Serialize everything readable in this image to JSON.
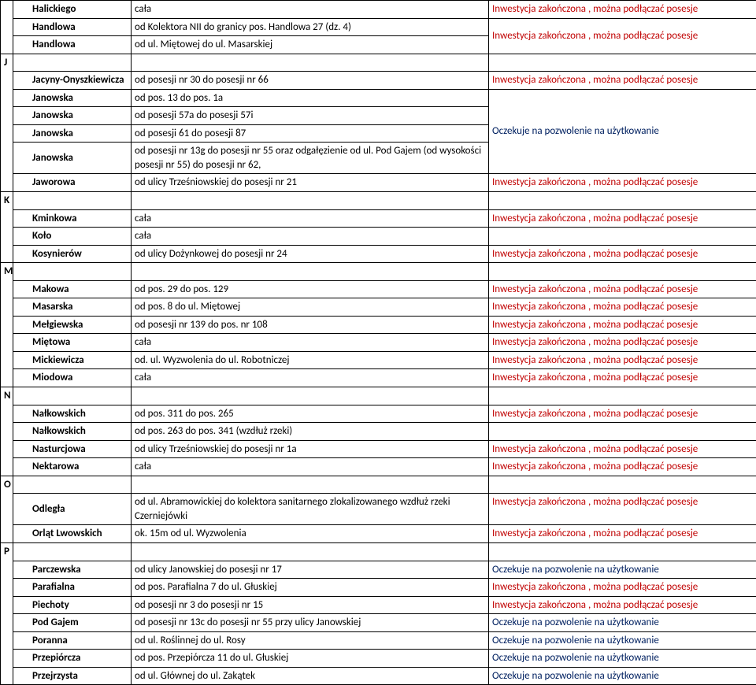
{
  "colors": {
    "red": "#c00000",
    "blue": "#002060",
    "black": "#000000",
    "border": "#000000",
    "background": "#ffffff"
  },
  "status": {
    "done": "Inwestycja zakończona , można podłączać posesje",
    "wait": "Oczekuje na pozwolenie na użytkowanie"
  },
  "sections": [
    {
      "letter": null,
      "rows": [
        {
          "street": "Halickiego",
          "show_street": true,
          "street_bold": true,
          "street_indent": true,
          "desc": "cała",
          "status_key": "done",
          "status_span": 1,
          "status_valign": "top"
        },
        {
          "street": "Handlowa",
          "show_street": true,
          "street_bold": true,
          "street_indent": true,
          "desc": "od Kolektora NII do granicy pos. Handlowa 27 (dz. 4)",
          "status_key": "done",
          "status_span": 2,
          "status_valign": "middle"
        },
        {
          "street": "Handlowa",
          "show_street": true,
          "street_bold": true,
          "street_indent": true,
          "desc": "od ul. Miętowej do ul. Masarskiej",
          "status_key": null
        }
      ]
    },
    {
      "letter": "J",
      "rows": [
        {
          "street": "Jacyny-Onyszkiewicza",
          "show_street": true,
          "street_bold": true,
          "street_indent": true,
          "desc": "od posesji nr 30 do posesji nr 66",
          "status_key": "done",
          "status_span": 1
        },
        {
          "street": "Janowska",
          "show_street": true,
          "street_bold": true,
          "street_indent": true,
          "desc": "od pos.  13 do pos. 1a",
          "status_key": "wait",
          "status_span": 4,
          "status_valign": "middle"
        },
        {
          "street": "Janowska",
          "show_street": true,
          "street_bold": true,
          "street_indent": true,
          "desc": "od posesji 57a do posesji 57i",
          "status_key": null
        },
        {
          "street": "Janowska",
          "show_street": true,
          "street_bold": true,
          "street_indent": true,
          "desc": "od posesji 61 do posesji 87",
          "status_key": null
        },
        {
          "street": "Janowska",
          "show_street": true,
          "street_bold": true,
          "street_indent": true,
          "desc": "od posesji nr 13g do posesji nr 55 oraz odgałęzienie od ul. Pod Gajem (od wysokości posesji nr 55) do posesji nr 62,",
          "status_key": null
        },
        {
          "street": "Jaworowa",
          "show_street": true,
          "street_bold": true,
          "street_indent": true,
          "desc": "od ulicy Trześniowskiej do posesji nr 21",
          "status_key": "done",
          "status_span": 1
        }
      ]
    },
    {
      "letter": "K",
      "rows": [
        {
          "street": "Kminkowa",
          "show_street": true,
          "street_bold": true,
          "street_indent": true,
          "desc": "cała",
          "status_key": "done",
          "status_span": 1
        },
        {
          "street": "Koło",
          "show_street": true,
          "street_bold": true,
          "street_indent": true,
          "desc": "cała",
          "status_key": "",
          "status_span": 1,
          "status_literal": ""
        },
        {
          "street": "Kosynierów",
          "show_street": true,
          "street_bold": true,
          "street_indent": true,
          "desc": "od ulicy Dożynkowej do posesji nr 24",
          "status_key": "done",
          "status_span": 1
        }
      ]
    },
    {
      "letter": "M",
      "rows": [
        {
          "street": "Makowa",
          "show_street": true,
          "street_bold": true,
          "street_indent": true,
          "desc": "od pos.  29 do pos.  129",
          "status_key": "done",
          "status_span": 1
        },
        {
          "street": "Masarska",
          "show_street": true,
          "street_bold": true,
          "street_indent": true,
          "desc": "od pos. 8 do ul. Miętowej",
          "status_key": "done",
          "status_span": 1
        },
        {
          "street": "Mełgiewska",
          "show_street": true,
          "street_bold": true,
          "street_indent": true,
          "desc": "od  posesji nr 139 do pos. nr 108",
          "status_key": "done",
          "status_span": 1
        },
        {
          "street": "Miętowa",
          "show_street": true,
          "street_bold": true,
          "street_indent": true,
          "desc": "cała",
          "status_key": "done",
          "status_span": 1
        },
        {
          "street": "Mickiewicza",
          "show_street": true,
          "street_bold": true,
          "street_indent": true,
          "desc": "od. ul. Wyzwolenia do ul. Robotniczej",
          "status_key": "done",
          "status_span": 1
        },
        {
          "street": "Miodowa",
          "show_street": true,
          "street_bold": true,
          "street_indent": true,
          "desc": "cała",
          "status_key": "done",
          "status_span": 1
        }
      ]
    },
    {
      "letter": "N",
      "rows": [
        {
          "street": "Nałkowskich",
          "show_street": true,
          "street_bold": true,
          "street_indent": true,
          "desc": "od pos. 311 do pos. 265",
          "status_key": "done",
          "status_span": 1
        },
        {
          "street": "Nałkowskich",
          "show_street": true,
          "street_bold": true,
          "street_indent": true,
          "desc": "od pos. 263 do pos. 341 (wzdłuż rzeki)",
          "status_key": "",
          "status_span": 1,
          "status_literal": ""
        },
        {
          "street": "Nasturcjowa",
          "show_street": true,
          "street_bold": true,
          "street_indent": true,
          "desc": "od ulicy Trześniowskiej do posesji nr 1a",
          "status_key": "done",
          "status_span": 1
        },
        {
          "street": "Nektarowa",
          "show_street": true,
          "street_bold": true,
          "street_indent": true,
          "desc": "cała",
          "status_key": "done",
          "status_span": 1
        }
      ]
    },
    {
      "letter": "O",
      "rows": [
        {
          "street": "Odległa",
          "show_street": true,
          "street_bold": true,
          "street_indent": true,
          "desc": "od ul. Abramowickiej do kolektora sanitarnego  zlokalizowanego wzdłuż rzeki Czerniejówki",
          "status_key": "done",
          "status_span": 1,
          "status_valign": "top"
        },
        {
          "street": "Orląt Lwowskich",
          "show_street": true,
          "street_bold": true,
          "street_indent": true,
          "desc": "ok. 15m od ul. Wyzwolenia",
          "status_key": "done",
          "status_span": 1
        }
      ]
    },
    {
      "letter": "P",
      "rows": [
        {
          "street": "Parczewska",
          "show_street": true,
          "street_bold": true,
          "street_indent": true,
          "desc": "od ulicy Janowskiej do posesji nr 17",
          "status_key": "wait",
          "status_span": 1
        },
        {
          "street": "Parafialna",
          "show_street": true,
          "street_bold": true,
          "street_indent": true,
          "desc": "od pos. Parafialna 7 do ul. Głuskiej",
          "status_key": "done",
          "status_span": 1
        },
        {
          "street": "Piechoty",
          "show_street": true,
          "street_bold": true,
          "street_indent": true,
          "desc": "od posesji nr 3 do posesji nr 15",
          "status_key": "done",
          "status_span": 1
        },
        {
          "street": "Pod Gajem",
          "show_street": true,
          "street_bold": true,
          "street_indent": true,
          "desc": "od posesji nr 13c do posesji nr 55 przy ulicy Janowskiej",
          "status_key": "wait",
          "status_span": 1
        },
        {
          "street": "Poranna",
          "show_street": true,
          "street_bold": true,
          "street_indent": true,
          "desc": "od ul. Roślinnej do ul. Rosy",
          "status_key": "wait",
          "status_span": 1
        },
        {
          "street": "Przepiórcza",
          "show_street": true,
          "street_bold": true,
          "street_indent": true,
          "desc": "od pos. Przepiórcza 11   do ul. Głuskiej",
          "status_key": "wait",
          "status_span": 1
        },
        {
          "street": "Przejrzysta",
          "show_street": true,
          "street_bold": true,
          "street_indent": true,
          "desc": "od ul. Głównej do ul. Zakątek",
          "status_key": "wait",
          "status_span": 1
        }
      ]
    }
  ]
}
